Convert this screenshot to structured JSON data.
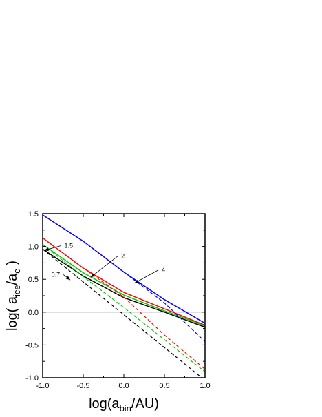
{
  "chart_data": {
    "type": "line",
    "title": "",
    "xlabel": {
      "main": "log(a",
      "sub": "bin",
      "tail": "/AU)"
    },
    "ylabel": {
      "main": "log( a",
      "sub1": "ice",
      "mid": "/a",
      "sub2": "c",
      "tail": " )"
    },
    "xlim": [
      -1.0,
      1.0
    ],
    "ylim": [
      -1.0,
      1.5
    ],
    "xticks": [
      -1.0,
      -0.5,
      0.0,
      0.5,
      1.0
    ],
    "xtick_labels": [
      "-1.0",
      "-0.5",
      "0.0",
      "0.5",
      "1.0"
    ],
    "yticks": [
      -1.0,
      -0.5,
      0.0,
      0.5,
      1.0,
      1.5
    ],
    "ytick_labels": [
      "-1.0",
      "-0.5",
      "0.0",
      "0.5",
      "1.0",
      "1.5"
    ],
    "grid": false,
    "legend": "none",
    "reference_lines": [
      {
        "y": 0.0,
        "color": "#808080"
      }
    ],
    "series": [
      {
        "color": "#0000ff",
        "style": "solid",
        "x": [
          -1.0,
          -0.5,
          0.0,
          0.5,
          1.0
        ],
        "y": [
          1.48,
          1.08,
          0.61,
          0.19,
          -0.17
        ]
      },
      {
        "color": "#ff0000",
        "style": "solid",
        "x": [
          -1.0,
          -0.5,
          0.0,
          0.5,
          1.0
        ],
        "y": [
          1.13,
          0.67,
          0.3,
          0.05,
          -0.2
        ]
      },
      {
        "color": "#00cc00",
        "style": "solid",
        "x": [
          -1.0,
          -0.5,
          0.0,
          0.5,
          1.0
        ],
        "y": [
          1.03,
          0.6,
          0.26,
          0.02,
          -0.21
        ]
      },
      {
        "color": "#000000",
        "style": "solid",
        "x": [
          -1.0,
          -0.5,
          0.0,
          0.5,
          1.0
        ],
        "y": [
          0.96,
          0.55,
          0.22,
          0.0,
          -0.23
        ]
      },
      {
        "color": "#0000ff",
        "style": "dashed",
        "x": [
          0.0,
          0.5,
          1.0
        ],
        "y": [
          0.61,
          0.14,
          -0.45
        ]
      },
      {
        "color": "#ff0000",
        "style": "dashed",
        "x": [
          -0.5,
          0.0,
          0.5,
          1.0
        ],
        "y": [
          0.67,
          0.23,
          -0.35,
          -0.87
        ]
      },
      {
        "color": "#00cc00",
        "style": "dashed",
        "x": [
          -1.0,
          -0.5,
          0.0,
          0.5,
          1.0
        ],
        "y": [
          1.03,
          0.54,
          0.07,
          -0.42,
          -0.91
        ]
      },
      {
        "color": "#000000",
        "style": "dashed",
        "x": [
          -1.0,
          1.0
        ],
        "y": [
          0.96,
          -1.04
        ]
      }
    ],
    "annotations": [
      {
        "text": "1.5",
        "label_at": [
          -0.75,
          0.98
        ],
        "arrow_to": [
          -0.98,
          0.94
        ]
      },
      {
        "text": "2",
        "label_at": [
          -0.05,
          0.82
        ],
        "arrow_to": [
          -0.41,
          0.53
        ]
      },
      {
        "text": "4",
        "label_at": [
          0.45,
          0.61
        ],
        "arrow_to": [
          0.13,
          0.44
        ]
      },
      {
        "text": "0.7",
        "label_at": [
          -0.77,
          0.54
        ],
        "arrow_to": [
          -0.66,
          0.49
        ]
      }
    ]
  }
}
